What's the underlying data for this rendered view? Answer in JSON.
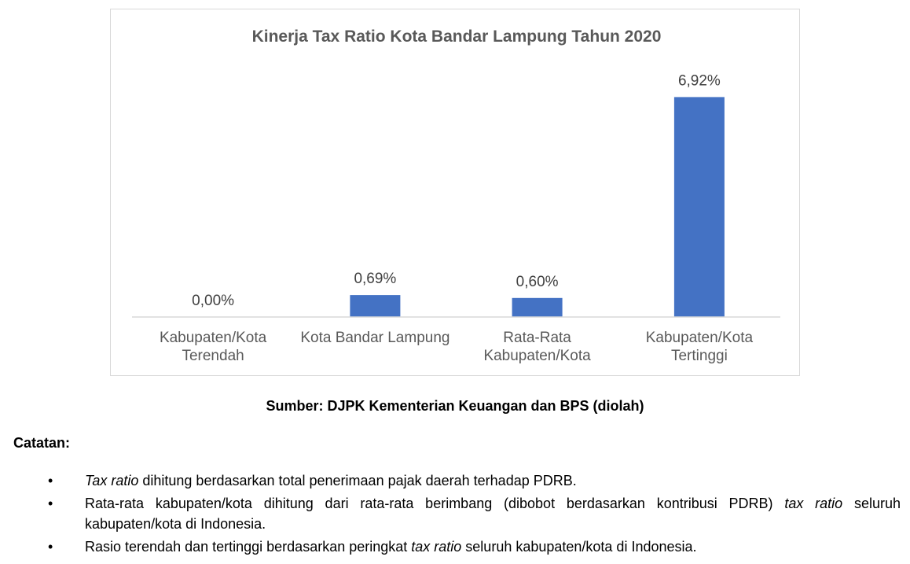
{
  "chart_data": {
    "type": "bar",
    "title": "Kinerja Tax Ratio Kota Bandar Lampung Tahun 2020",
    "categories": [
      [
        "Kabupaten/Kota",
        "Terendah"
      ],
      [
        "Kota Bandar Lampung"
      ],
      [
        "Rata-Rata",
        "Kabupaten/Kota"
      ],
      [
        "Kabupaten/Kota",
        "Tertinggi"
      ]
    ],
    "values": [
      0.0,
      0.69,
      0.6,
      6.92
    ],
    "data_labels": [
      "0,00%",
      "0,69%",
      "0,60%",
      "6,92%"
    ],
    "unit": "%",
    "ylim": [
      0,
      7.3
    ],
    "grid": false,
    "legend": "none",
    "bar_color": "#4472C4",
    "axis_color": "#d9d9d9"
  },
  "source": "Sumber: DJPK Kementerian Keuangan dan BPS (diolah)",
  "notes": {
    "heading": "Catatan:",
    "bullet_glyph": "•",
    "items": [
      [
        {
          "text": "Tax ratio",
          "italic": true
        },
        {
          "text": " dihitung berdasarkan total penerimaan pajak daerah terhadap PDRB.",
          "italic": false
        }
      ],
      [
        {
          "text": "Rata-rata kabupaten/kota dihitung dari rata-rata berimbang (dibobot berdasarkan kontribusi PDRB) ",
          "italic": false
        },
        {
          "text": "tax ratio",
          "italic": true
        },
        {
          "text": " seluruh kabupaten/kota di Indonesia.",
          "italic": false
        }
      ],
      [
        {
          "text": "Rasio terendah dan tertinggi berdasarkan peringkat ",
          "italic": false
        },
        {
          "text": "tax ratio",
          "italic": true
        },
        {
          "text": " seluruh kabupaten/kota di Indonesia.",
          "italic": false
        }
      ]
    ]
  }
}
